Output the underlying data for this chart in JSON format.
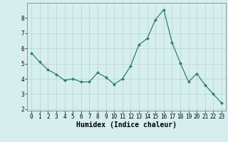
{
  "x": [
    0,
    1,
    2,
    3,
    4,
    5,
    6,
    7,
    8,
    9,
    10,
    11,
    12,
    13,
    14,
    15,
    16,
    17,
    18,
    19,
    20,
    21,
    22,
    23
  ],
  "y": [
    5.7,
    5.1,
    4.6,
    4.3,
    3.9,
    4.0,
    3.8,
    3.8,
    4.4,
    4.1,
    3.65,
    4.0,
    4.85,
    6.25,
    6.65,
    7.9,
    8.55,
    6.4,
    5.05,
    3.8,
    4.35,
    3.6,
    3.0,
    2.4
  ],
  "line_color": "#2e7d6e",
  "marker": "D",
  "marker_size": 2.0,
  "bg_color": "#d6eeee",
  "grid_color": "#b8d8d8",
  "xlabel": "Humidex (Indice chaleur)",
  "ylim": [
    1.9,
    9.0
  ],
  "xlim": [
    -0.5,
    23.5
  ],
  "yticks": [
    2,
    3,
    4,
    5,
    6,
    7,
    8
  ],
  "xticks": [
    0,
    1,
    2,
    3,
    4,
    5,
    6,
    7,
    8,
    9,
    10,
    11,
    12,
    13,
    14,
    15,
    16,
    17,
    18,
    19,
    20,
    21,
    22,
    23
  ],
  "tick_fontsize": 5.5,
  "xlabel_fontsize": 7.0
}
